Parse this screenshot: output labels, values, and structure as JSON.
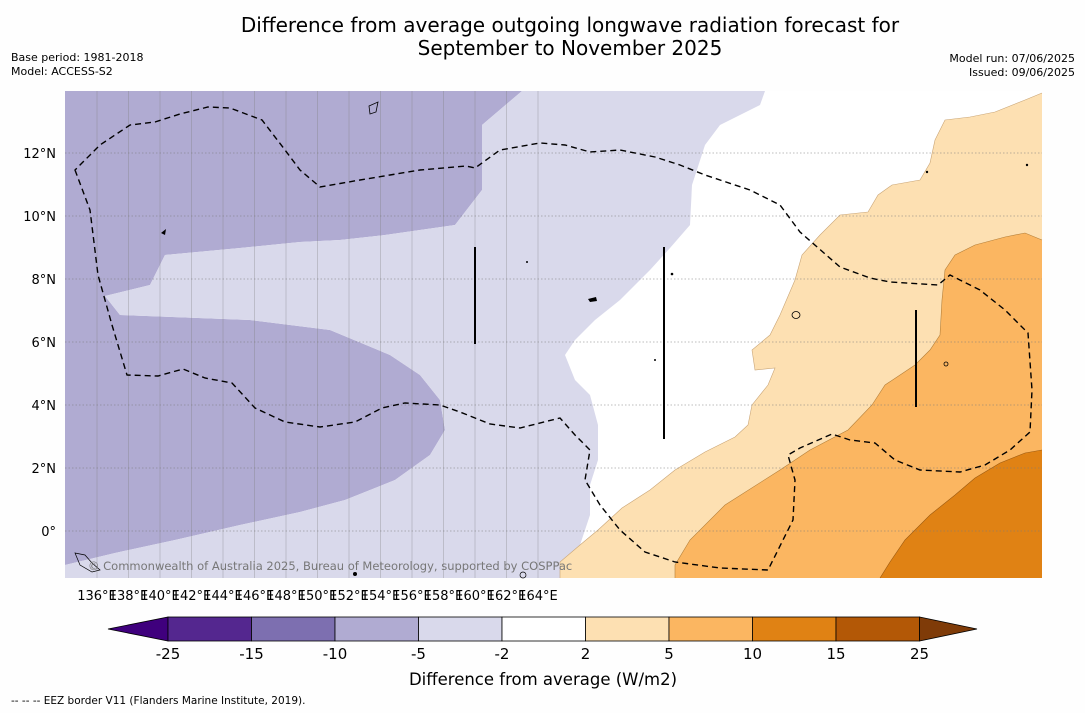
{
  "title_line1": "Difference from average outgoing longwave radiation forecast for",
  "title_line2": "September to November 2025",
  "base_period": "Base period: 1981-2018",
  "model": "Model: ACCESS-S2",
  "model_run": "Model run: 07/06/2025",
  "issued": "Issued: 09/06/2025",
  "copyright": "© Commonwealth of Australia 2025, Bureau of Meteorology, supported by COSPPac",
  "colorbar_label": "Difference from average (W/m2)",
  "footnote": "--  --  -- EEZ border V11 (Flanders Marine Institute, 2019).",
  "lon_ticks": [
    "136°E",
    "138°E",
    "140°E",
    "142°E",
    "144°E",
    "146°E",
    "148°E",
    "150°E",
    "152°E",
    "154°E",
    "156°E",
    "158°E",
    "160°E",
    "162°E",
    "164°E"
  ],
  "lat_ticks": [
    "12°N",
    "10°N",
    "8°N",
    "6°N",
    "4°N",
    "2°N",
    "0°"
  ],
  "colorbar": {
    "boundaries": [
      "-25",
      "-15",
      "-10",
      "-5",
      "-2",
      "2",
      "5",
      "10",
      "15",
      "25"
    ],
    "colors": [
      "#3f007d",
      "#54278f",
      "#7d6fb0",
      "#b0abd2",
      "#d9d9eb",
      "#ffffff",
      "#fde0b2",
      "#fbb661",
      "#e08214",
      "#b35806",
      "#7f3b08"
    ]
  },
  "legend_lines": [
    "EEZ border"
  ]
}
